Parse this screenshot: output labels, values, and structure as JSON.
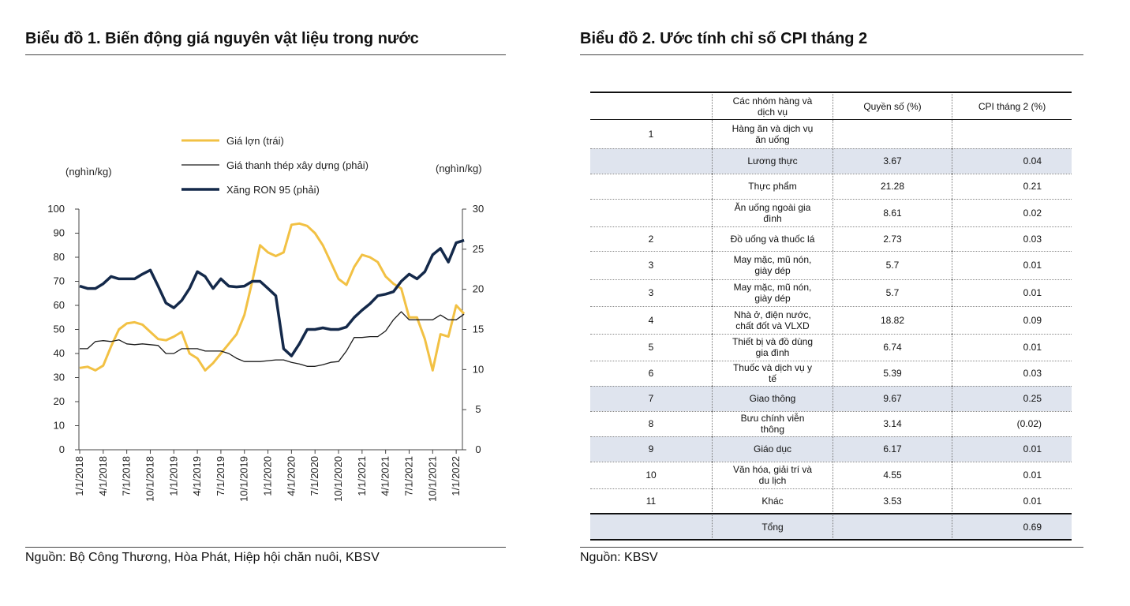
{
  "chart_data": {
    "type": "line",
    "title": "Biểu đồ 1. Biến động giá nguyên vật liệu trong nước",
    "ylabel": "(nghìn/kg)",
    "y2label": "(nghìn/kg)",
    "source": "Nguồn: Bộ Công Thương, Hòa Phát, Hiệp hội chăn nuôi, KBSV",
    "categories": [
      "1/1/2018",
      null,
      null,
      "4/1/2018",
      null,
      null,
      "7/1/2018",
      null,
      null,
      "10/1/2018",
      null,
      null,
      "1/1/2019",
      null,
      null,
      "4/1/2019",
      null,
      null,
      "7/1/2019",
      null,
      null,
      "10/1/2019",
      null,
      null,
      "1/1/2020",
      null,
      null,
      "4/1/2020",
      null,
      null,
      "7/1/2020",
      null,
      null,
      "10/1/2020",
      null,
      null,
      "1/1/2021",
      null,
      null,
      "4/1/2021",
      null,
      null,
      "7/1/2021",
      null,
      null,
      "10/1/2021",
      null,
      null,
      "1/1/2022",
      null
    ],
    "ylim": [
      0,
      100
    ],
    "yticks": [
      0,
      10,
      20,
      30,
      40,
      50,
      60,
      70,
      80,
      90,
      100
    ],
    "y2lim": [
      0,
      30
    ],
    "y2ticks": [
      0,
      5,
      10,
      15,
      20,
      25,
      30
    ],
    "series": [
      {
        "name": "Giá lợn (trái)",
        "color": "#f2c144",
        "width": 3,
        "values": [
          34,
          34.5,
          33,
          35,
          43,
          50,
          52.5,
          53,
          52,
          49,
          46,
          45.5,
          47,
          49,
          40,
          38,
          33,
          36,
          40,
          44,
          48,
          56,
          70,
          85,
          82,
          80.5,
          82,
          93.5,
          94,
          93,
          90,
          85,
          78,
          71,
          68.5,
          76,
          81,
          80,
          78,
          72,
          69,
          67,
          55,
          55,
          46,
          33,
          48,
          47,
          60,
          56.5
        ]
      },
      {
        "name": "Giá thanh thép xây dựng (phải)",
        "color": "#1a1a1a",
        "width": 1.3,
        "axis": "y2",
        "values": [
          12.6,
          12.6,
          13.5,
          13.6,
          13.5,
          13.7,
          13.2,
          13.1,
          13.2,
          13.1,
          13.0,
          12.0,
          12.0,
          12.6,
          12.6,
          12.6,
          12.3,
          12.3,
          12.3,
          12.0,
          11.4,
          11.0,
          11.0,
          11.0,
          11.1,
          11.2,
          11.2,
          10.9,
          10.7,
          10.4,
          10.4,
          10.6,
          10.9,
          11.0,
          12.3,
          14.0,
          14.0,
          14.1,
          14.1,
          14.8,
          16.2,
          17.2,
          16.2,
          16.2,
          16.2,
          16.2,
          16.8,
          16.2,
          16.2,
          16.9
        ]
      },
      {
        "name": "Xăng RON 95 (phải)",
        "color": "#14294a",
        "width": 3.5,
        "axis": "y2",
        "values": [
          20.4,
          20.1,
          20.1,
          20.7,
          21.6,
          21.3,
          21.3,
          21.3,
          21.9,
          22.4,
          20.4,
          18.3,
          17.7,
          18.6,
          20.1,
          22.2,
          21.6,
          20.1,
          21.3,
          20.4,
          20.3,
          20.4,
          21.0,
          21.0,
          20.1,
          19.2,
          12.6,
          11.7,
          13.2,
          15.0,
          15.0,
          15.2,
          15.0,
          15.0,
          15.3,
          16.5,
          17.4,
          18.2,
          19.2,
          19.4,
          19.7,
          21.0,
          21.9,
          21.3,
          22.2,
          24.3,
          25.1,
          23.4,
          25.8,
          26.1
        ]
      }
    ]
  },
  "panel2": {
    "title": "Biểu đồ 2. Ước tính chỉ số CPI tháng 2",
    "source": "Nguồn: KBSV",
    "table": {
      "header": [
        null,
        "Các nhóm hàng và dịch vụ",
        "Quyền số (%)",
        "CPI tháng 2 (%)"
      ],
      "rows": [
        [
          "1",
          "Hàng ăn và dịch vụ ăn uống",
          null,
          null
        ],
        [
          null,
          "Lương thực",
          "3.67",
          "0.04"
        ],
        [
          null,
          "Thực phẩm",
          "21.28",
          "0.21"
        ],
        [
          null,
          "Ăn uống ngoài gia đình",
          "8.61",
          "0.02"
        ],
        [
          "2",
          "Đồ uống và thuốc lá",
          "2.73",
          "0.03"
        ],
        [
          "3",
          "May mặc, mũ nón, giày dép",
          "5.7",
          "0.01"
        ],
        [
          "3",
          "May mặc, mũ nón, giày dép",
          "5.7",
          "0.01"
        ],
        [
          "4",
          "Nhà ở, điện nước, chất đốt và VLXD",
          "18.82",
          "0.09"
        ],
        [
          "5",
          "Thiết bị và đồ dùng gia đình",
          "6.74",
          "0.01"
        ],
        [
          "6",
          "Thuốc và dịch vụ y tế",
          "5.39",
          "0.03"
        ],
        [
          "7",
          "Giao thông",
          "9.67",
          "0.25"
        ],
        [
          "8",
          "Bưu chính viễn thông",
          "3.14",
          "(0.02)"
        ],
        [
          "9",
          "Giáo dục",
          "6.17",
          "0.01"
        ],
        [
          "10",
          "Văn hóa, giải trí và du lịch",
          "4.55",
          "0.01"
        ],
        [
          "11",
          "Khác",
          "3.53",
          "0.01"
        ],
        [
          null,
          "Tổng",
          null,
          "0.69"
        ]
      ]
    }
  }
}
